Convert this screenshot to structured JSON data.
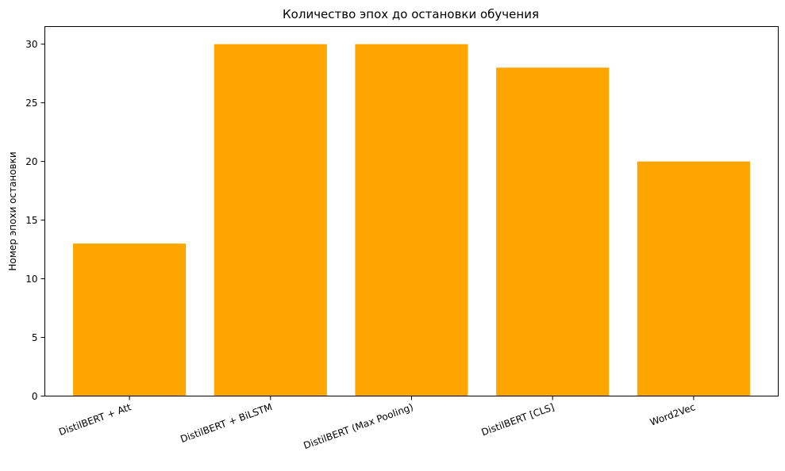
{
  "chart_data": {
    "type": "bar",
    "title": "Количество эпох до остановки обучения",
    "xlabel": "",
    "ylabel": "Номер эпохи остановки",
    "categories": [
      "DistilBERT + Att",
      "DistilBERT + BiLSTM",
      "DistilBERT (Max Pooling)",
      "DistilBERT [CLS]",
      "Word2Vec"
    ],
    "values": [
      13,
      30,
      30,
      28,
      20
    ],
    "ylim": [
      0,
      31.5
    ],
    "yticks": [
      0,
      5,
      10,
      15,
      20,
      25,
      30
    ],
    "bar_color": "#ffa500",
    "grid": false,
    "legend": "none"
  }
}
